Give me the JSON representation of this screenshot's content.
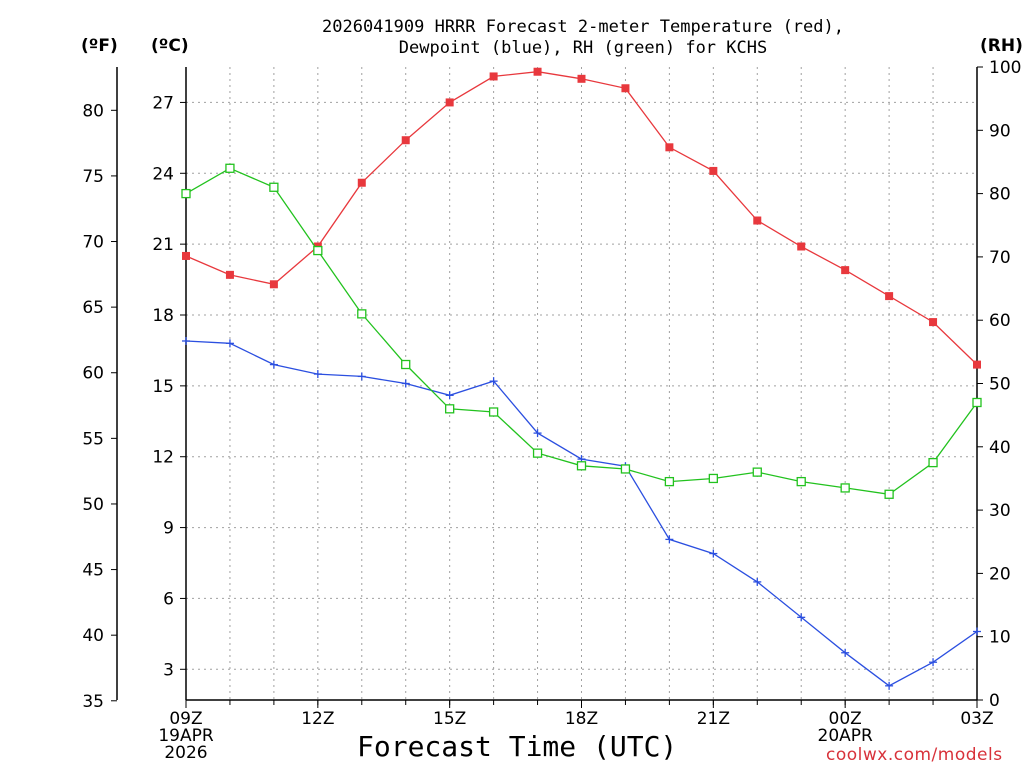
{
  "title_line1": "2026041909 HRRR Forecast 2-meter Temperature (red),",
  "title_line2": "Dewpoint (blue), RH (green) for KCHS",
  "watermark": "coolwx.com/models",
  "chart_data": {
    "type": "line",
    "title": "2026041909 HRRR Forecast 2-meter Temperature (red), Dewpoint (blue), RH (green) for KCHS",
    "xlabel": "Forecast Time (UTC)",
    "x_hours": [
      0,
      1,
      2,
      3,
      4,
      5,
      6,
      7,
      8,
      9,
      10,
      11,
      12,
      13,
      14,
      15,
      16,
      17,
      18
    ],
    "x_ticks": [
      {
        "hour": 0,
        "lines": [
          "09Z",
          "19APR",
          "2026"
        ]
      },
      {
        "hour": 3,
        "lines": [
          "12Z"
        ]
      },
      {
        "hour": 6,
        "lines": [
          "15Z"
        ]
      },
      {
        "hour": 9,
        "lines": [
          "18Z"
        ]
      },
      {
        "hour": 12,
        "lines": [
          "21Z"
        ]
      },
      {
        "hour": 15,
        "lines": [
          "00Z",
          "20APR"
        ]
      },
      {
        "hour": 18,
        "lines": [
          "03Z"
        ]
      }
    ],
    "axes": {
      "fahrenheit": {
        "label": "(ºF)",
        "ticks": [
          35,
          40,
          45,
          50,
          55,
          60,
          65,
          70,
          75,
          80
        ]
      },
      "celsius": {
        "label": "(ºC)",
        "range": [
          1.7,
          28.5
        ],
        "ticks": [
          3,
          6,
          9,
          12,
          15,
          18,
          21,
          24,
          27
        ]
      },
      "rh": {
        "label": "(RH)",
        "range": [
          0,
          100
        ],
        "ticks": [
          0,
          10,
          20,
          30,
          40,
          50,
          60,
          70,
          80,
          90,
          100
        ]
      }
    },
    "series": [
      {
        "name": "2-meter Temperature",
        "color": "#e8383d",
        "marker": "filled-square",
        "axis": "celsius",
        "values": [
          20.5,
          19.7,
          19.3,
          20.9,
          23.6,
          25.4,
          27.0,
          28.1,
          28.3,
          28.0,
          27.6,
          25.1,
          24.1,
          22.0,
          20.9,
          19.9,
          18.8,
          17.7,
          15.9
        ]
      },
      {
        "name": "Dewpoint",
        "color": "#2b4fe0",
        "marker": "plus",
        "axis": "celsius",
        "values": [
          16.9,
          16.8,
          15.9,
          15.5,
          15.4,
          15.1,
          14.6,
          15.2,
          13.0,
          11.9,
          11.6,
          8.5,
          7.9,
          6.7,
          5.2,
          3.7,
          2.3,
          3.3,
          4.6
        ]
      },
      {
        "name": "RH",
        "color": "#22c21e",
        "marker": "open-square",
        "axis": "rh",
        "values": [
          80,
          84,
          81,
          71,
          61,
          53,
          46,
          45.5,
          39,
          37,
          36.5,
          34.5,
          35,
          36,
          34.5,
          33.5,
          32.5,
          37.5,
          47
        ]
      }
    ]
  }
}
